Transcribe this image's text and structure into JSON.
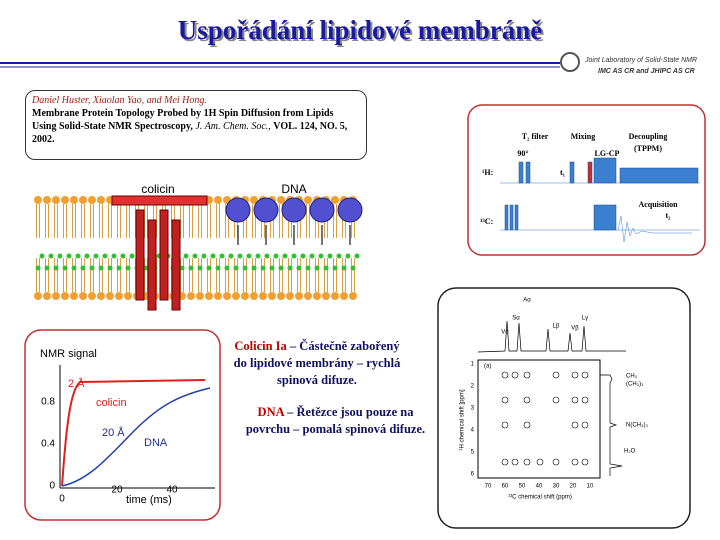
{
  "header": {
    "title": "Uspořádání lipidové membráně",
    "logo": [
      "Joint Laboratory of Solid-State NMR",
      "IMC AS CR and JHIPC AS CR"
    ]
  },
  "citation": {
    "authors": "Daniel Huster, Xiaolan Yao, and Mei Hong.",
    "title": "Membrane Protein Topology Probed by 1H Spin Diffusion from Lipids Using Solid-State NMR Spectroscopy,",
    "journal": "J. Am. Chem. Soc.,",
    "details": "VOL. 124, NO. 5, 2002."
  },
  "membrane_figure": {
    "labels": [
      "colicin",
      "DNA"
    ]
  },
  "pulse_sequence": {
    "labels": [
      "T₂ filter",
      "Mixing",
      "Decoupling",
      "(TPPM)",
      "90°",
      "LG-CP",
      "¹H:",
      "t₁",
      "Acquisition",
      "t₂",
      "¹³C:"
    ]
  },
  "nmr_plot": {
    "title": "NMR signal",
    "yticks": [
      "0.8",
      "0.4",
      "0"
    ],
    "xticks": [
      "0",
      "20",
      "40"
    ],
    "xlabel": "time (ms)",
    "labels": [
      "2 Å",
      "colicin",
      "20 Å",
      "DNA"
    ]
  },
  "notes": [
    {
      "term": "Colicin Ia",
      "text": "– Částečně zabořený do lipidové membrány – rychlá spinová difuze."
    },
    {
      "term": "DNA",
      "text": "– Řetězce jsou pouze na povrchu – pomalá spinová difuze."
    }
  ],
  "spectrum": {
    "panel": "(a)",
    "peaks": [
      "Aα",
      "Sα",
      "Vα",
      "Lβ",
      "Vβ",
      "Lγ"
    ],
    "side_labels": [
      "CH₃",
      "(CH₃)₃",
      "N(CH₃)₃",
      "H₂O"
    ],
    "xticks": [
      "70",
      "60",
      "50",
      "40",
      "30",
      "20",
      "10"
    ],
    "yticks": [
      "1",
      "2",
      "3",
      "4",
      "5",
      "6"
    ],
    "xlabel": "¹³C chemical shift (ppm)",
    "ylabel": "¹H chemical shift [ppm]"
  }
}
